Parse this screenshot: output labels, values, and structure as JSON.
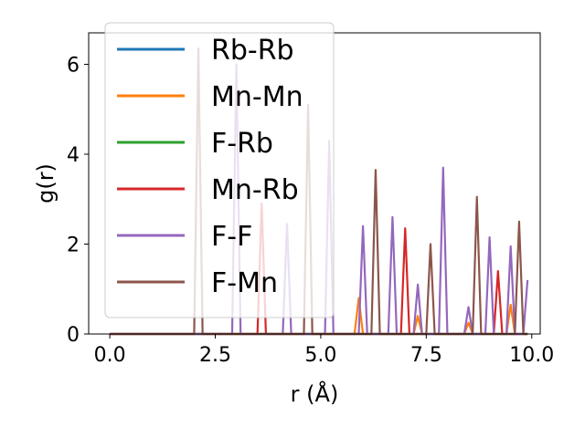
{
  "chart_data": {
    "type": "line",
    "title": "",
    "xlabel": "r (Å)",
    "ylabel": "g(r)",
    "xlim": [
      -0.5,
      10.2
    ],
    "ylim": [
      0,
      6.7
    ],
    "xticks": [
      0.0,
      2.5,
      5.0,
      7.5,
      10.0
    ],
    "xtick_labels": [
      "0.0",
      "2.5",
      "5.0",
      "7.5",
      "10.0"
    ],
    "yticks": [
      0,
      2,
      4,
      6
    ],
    "ytick_labels": [
      "0",
      "2",
      "4",
      "6"
    ],
    "grid": false,
    "legend_position": "top-left",
    "series": [
      {
        "name": "Rb-Rb",
        "color": "#1f77b4",
        "x": [
          0.0,
          2.9,
          3.0,
          3.1,
          9.9
        ],
        "y": [
          0,
          0,
          0,
          0,
          0
        ]
      },
      {
        "name": "Mn-Mn",
        "color": "#ff7f0e",
        "x": [
          0.0,
          5.8,
          5.9,
          6.0,
          7.2,
          7.3,
          7.4,
          8.4,
          8.5,
          8.6,
          9.4,
          9.5,
          9.6,
          9.9
        ],
        "y": [
          0,
          0,
          0.8,
          0,
          0,
          0.4,
          0,
          0,
          0.25,
          0,
          0,
          0.65,
          0,
          0
        ]
      },
      {
        "name": "F-Rb",
        "color": "#2ca02c",
        "x": [
          0.0,
          9.9
        ],
        "y": [
          0,
          0
        ]
      },
      {
        "name": "Mn-Rb",
        "color": "#d62728",
        "x": [
          0.0,
          3.5,
          3.6,
          3.7,
          6.9,
          7.0,
          7.1,
          9.1,
          9.2,
          9.3,
          9.9
        ],
        "y": [
          0,
          0,
          2.9,
          0,
          0,
          2.35,
          0,
          0,
          1.4,
          0,
          0
        ]
      },
      {
        "name": "F-F",
        "color": "#9467bd",
        "x": [
          0.0,
          2.9,
          3.0,
          3.1,
          4.1,
          4.2,
          4.3,
          5.1,
          5.2,
          5.3,
          5.9,
          6.0,
          6.1,
          6.6,
          6.7,
          6.8,
          7.2,
          7.3,
          7.4,
          7.8,
          7.9,
          8.0,
          8.4,
          8.5,
          8.6,
          8.9,
          9.0,
          9.1,
          9.4,
          9.5,
          9.6,
          9.8,
          9.9
        ],
        "y": [
          0,
          0,
          6.0,
          0,
          0,
          2.45,
          0,
          0,
          4.3,
          0,
          0,
          2.4,
          0,
          0,
          2.6,
          0,
          0,
          1.1,
          0,
          0,
          3.7,
          0,
          0,
          0.6,
          0,
          0,
          2.15,
          0,
          0,
          1.95,
          0,
          0,
          1.2
        ]
      },
      {
        "name": "F-Mn",
        "color": "#8c564b",
        "x": [
          0.0,
          2.0,
          2.1,
          2.2,
          4.6,
          4.7,
          4.8,
          6.2,
          6.3,
          6.4,
          7.5,
          7.6,
          7.7,
          8.6,
          8.7,
          8.8,
          9.6,
          9.7,
          9.8,
          9.9
        ],
        "y": [
          0,
          0,
          6.35,
          0,
          0,
          5.1,
          0,
          0,
          3.65,
          0,
          0,
          2.0,
          0,
          0,
          3.05,
          0,
          0,
          2.5,
          0,
          0
        ]
      }
    ]
  }
}
